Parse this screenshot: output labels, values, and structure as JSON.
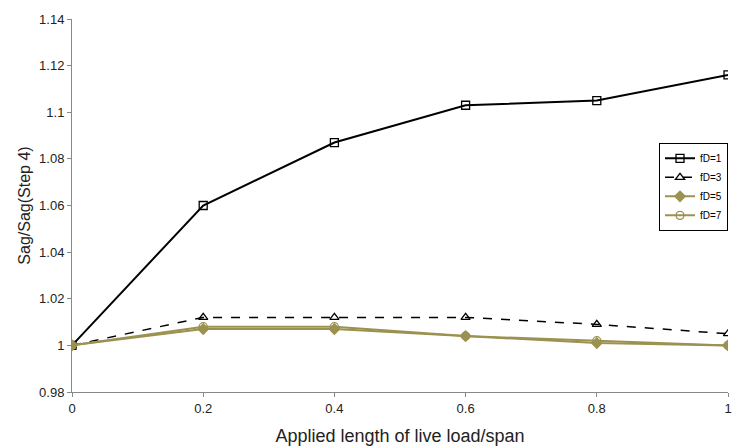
{
  "chart_data": {
    "type": "line",
    "x_label": "Applied length of live load/span",
    "y_label": "Sag/Sag(Step 4)",
    "x": [
      0,
      0.2,
      0.4,
      0.6,
      0.8,
      1
    ],
    "series": [
      {
        "name": "fD=1",
        "color": "#000000",
        "marker": "square-open",
        "line_style": "solid",
        "values": [
          1,
          1.06,
          1.087,
          1.103,
          1.105,
          1.116
        ]
      },
      {
        "name": "fD=3",
        "color": "#000000",
        "marker": "triangle-open",
        "line_style": "dash",
        "values": [
          1,
          1.012,
          1.012,
          1.012,
          1.009,
          1.005
        ]
      },
      {
        "name": "fD=5",
        "color": "#9b9150",
        "marker": "diamond",
        "line_style": "solid",
        "values": [
          1,
          1.007,
          1.007,
          1.004,
          1.001,
          1.0
        ]
      },
      {
        "name": "fD=7",
        "color": "#9b9150",
        "marker": "circle-open",
        "line_style": "solid",
        "values": [
          1,
          1.008,
          1.008,
          1.004,
          1.002,
          1.0
        ]
      }
    ],
    "xlim": [
      0,
      1
    ],
    "xticks": [
      0,
      0.2,
      0.4,
      0.6,
      0.8,
      1
    ],
    "ylim": [
      0.98,
      1.14
    ],
    "yticks": [
      0.98,
      1,
      1.02,
      1.04,
      1.06,
      1.08,
      1.1,
      1.12,
      1.14
    ],
    "grid": false,
    "legend": "right"
  }
}
